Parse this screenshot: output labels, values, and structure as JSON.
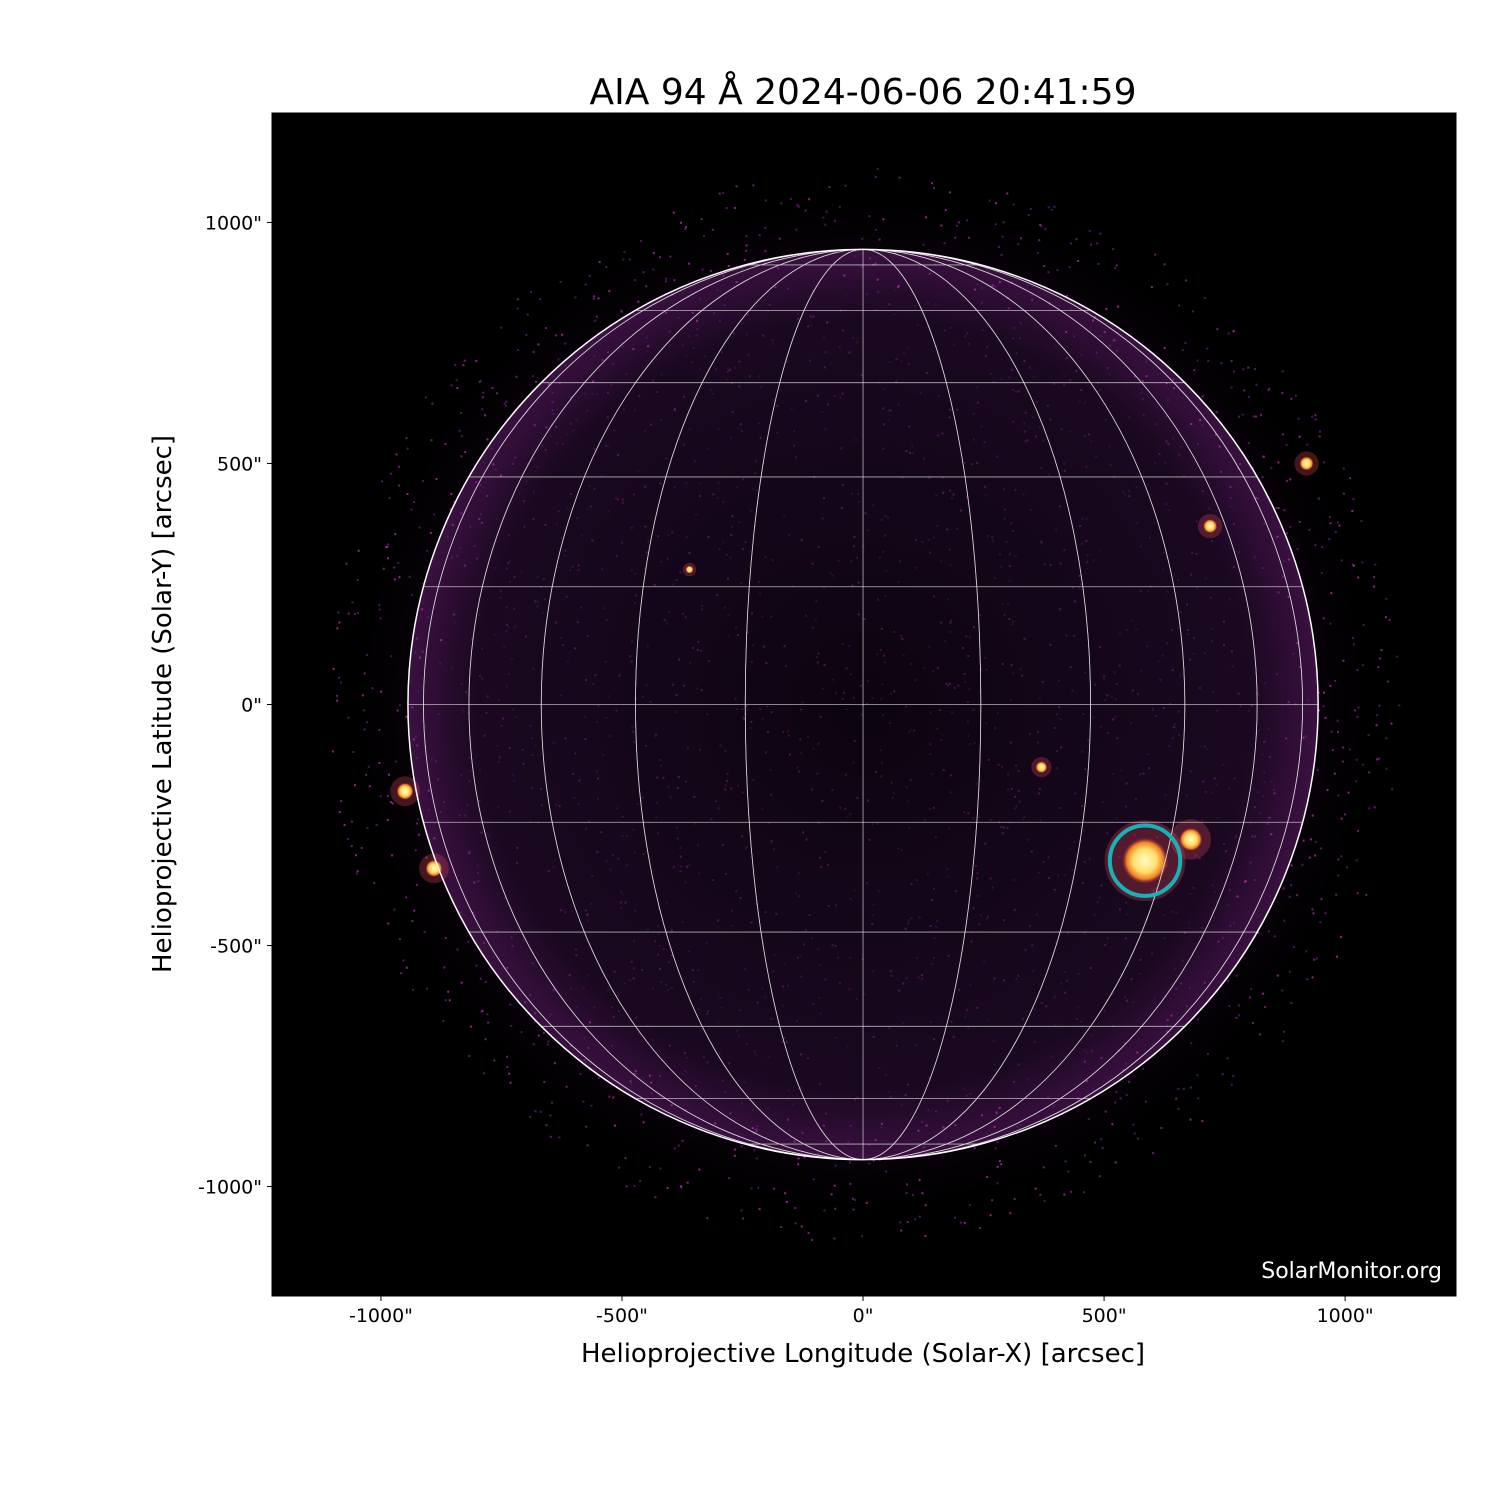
{
  "chart_data": {
    "type": "image",
    "title": "AIA 94 Å 2024-06-06 20:41:59",
    "xlabel": "Helioprojective Longitude (Solar-X) [arcsec]",
    "ylabel": "Helioprojective Latitude (Solar-Y) [arcsec]",
    "xlim": [
      -1226,
      1230
    ],
    "ylim": [
      -1227,
      1227
    ],
    "xticks": [
      -1000,
      -500,
      0,
      500,
      1000
    ],
    "yticks": [
      -1000,
      -500,
      0,
      500,
      1000
    ],
    "xtick_labels": [
      "-1000\"",
      "-500\"",
      "0\"",
      "500\"",
      "1000\""
    ],
    "ytick_labels": [
      "-1000\"",
      "-500\"",
      "0\"",
      "500\"",
      "1000\""
    ],
    "solar_radius_arcsec": 944,
    "grid_spacing_deg": 15,
    "colormap": "sdoaia94",
    "highlight_circle": {
      "x": 585,
      "y": -324,
      "radius_arcsec": 73,
      "color": "#17b2b6"
    },
    "bright_regions": [
      {
        "x": 585,
        "y": -324,
        "size": 60
      },
      {
        "x": 680,
        "y": -280,
        "size": 30
      },
      {
        "x": -950,
        "y": -180,
        "size": 22
      },
      {
        "x": -890,
        "y": -340,
        "size": 22
      },
      {
        "x": 920,
        "y": 500,
        "size": 18
      },
      {
        "x": 720,
        "y": 370,
        "size": 18
      },
      {
        "x": 370,
        "y": -130,
        "size": 15
      },
      {
        "x": -360,
        "y": 280,
        "size": 10
      }
    ],
    "watermark": "SolarMonitor.org"
  }
}
